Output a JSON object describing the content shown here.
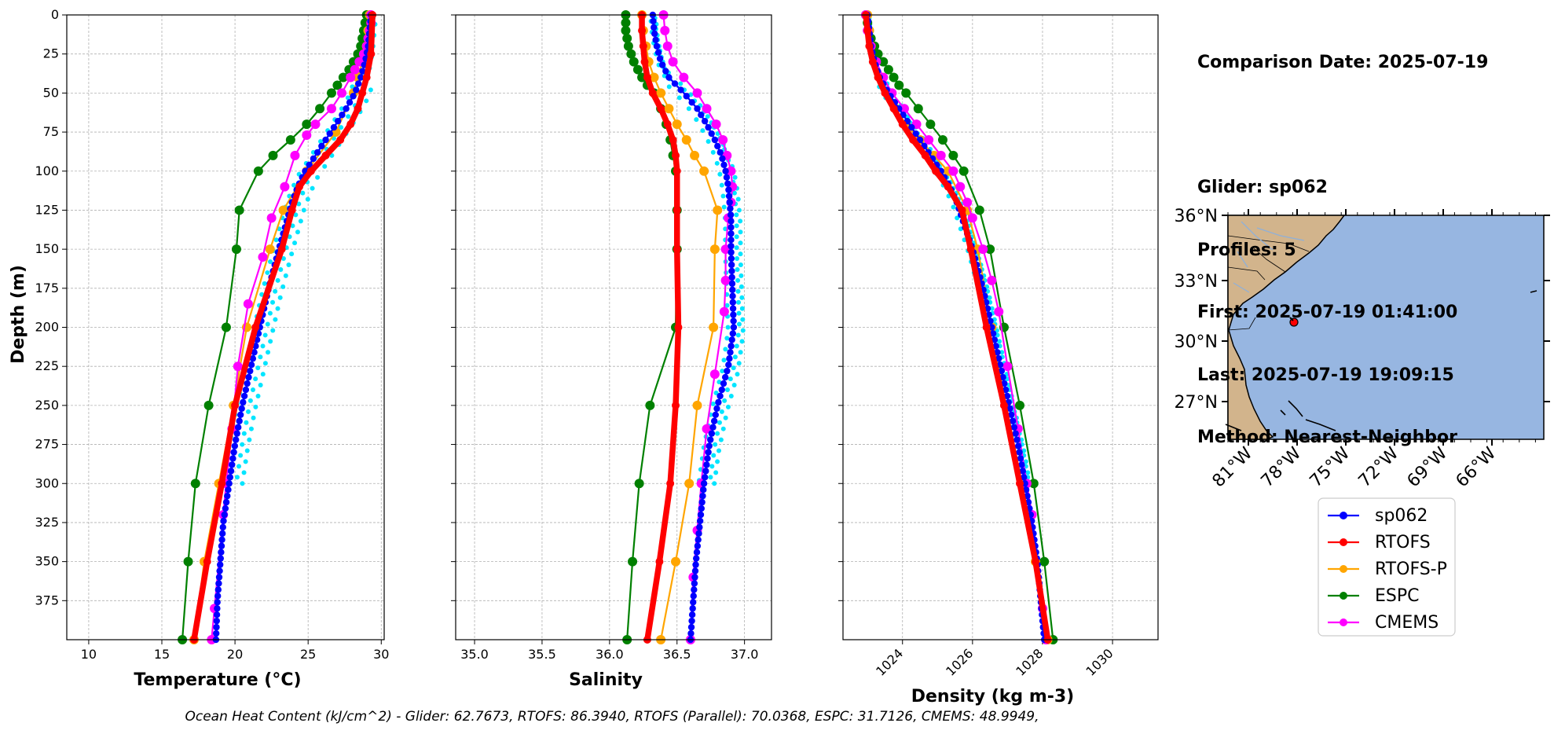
{
  "info_panel": {
    "comparison_date": "Comparison Date: 2025-07-19",
    "glider": "Glider: sp062",
    "profiles": "Profiles: 5",
    "first": "First: 2025-07-19 01:41:00",
    "last": "Last: 2025-07-19 19:09:15",
    "method": "Method: Nearest-Neighbor"
  },
  "footer": "Ocean Heat Content (kJ/cm^2) - Glider: 62.7673,  RTOFS: 86.3940,  RTOFS (Parallel): 70.0368,  ESPC: 31.7126,  CMEMS: 48.9949,",
  "colors": {
    "sp062": "#0000ff",
    "glider_profiles": "#00e5ff",
    "RTOFS": "#ff0000",
    "RTOFS-P": "#ffa500",
    "ESPC": "#008000",
    "CMEMS": "#ff00ff",
    "land": "#d2b48c",
    "ocean": "#97b6e1"
  },
  "chart_data": [
    {
      "type": "line",
      "xlabel": "Temperature (°C)",
      "ylabel": "Depth (m)",
      "xlim": [
        8.5,
        30.2
      ],
      "ylim": [
        400,
        0
      ],
      "xticks": [
        10,
        15,
        20,
        25,
        30
      ],
      "yticks": [
        0,
        25,
        50,
        75,
        100,
        125,
        150,
        175,
        200,
        225,
        250,
        275,
        300,
        325,
        350,
        375
      ],
      "grid": true,
      "series": [
        {
          "name": "sp062",
          "depth": [
            0,
            10,
            20,
            30,
            40,
            50,
            60,
            70,
            80,
            90,
            100,
            110,
            120,
            130,
            140,
            150,
            175,
            200,
            225,
            250,
            275,
            300,
            325,
            350,
            375,
            400
          ],
          "values": [
            29.3,
            29.2,
            29.1,
            28.9,
            28.6,
            28.2,
            27.6,
            26.9,
            26.2,
            25.5,
            24.8,
            24.3,
            23.9,
            23.6,
            23.3,
            23.0,
            22.3,
            21.7,
            21.1,
            20.5,
            20.0,
            19.6,
            19.2,
            19.0,
            18.8,
            18.7
          ]
        },
        {
          "name": "RTOFS",
          "depth": [
            0,
            25,
            40,
            50,
            60,
            70,
            80,
            90,
            100,
            110,
            125,
            150,
            200,
            250,
            300,
            350,
            400
          ],
          "values": [
            29.4,
            29.3,
            29.0,
            28.7,
            28.4,
            27.9,
            27.2,
            26.2,
            25.2,
            24.4,
            23.9,
            23.2,
            21.4,
            20.0,
            19.1,
            18.1,
            17.2
          ]
        },
        {
          "name": "RTOFS-P",
          "depth": [
            0,
            10,
            20,
            30,
            40,
            50,
            75,
            100,
            125,
            150,
            200,
            250,
            300,
            350,
            400
          ],
          "values": [
            29.2,
            29.1,
            29.0,
            28.7,
            28.4,
            28.1,
            26.9,
            24.9,
            23.3,
            22.4,
            20.8,
            19.9,
            18.9,
            17.9,
            17.2
          ]
        },
        {
          "name": "ESPC",
          "depth": [
            0,
            5,
            10,
            15,
            20,
            25,
            30,
            35,
            40,
            45,
            50,
            60,
            70,
            80,
            90,
            100,
            125,
            150,
            200,
            250,
            300,
            350,
            400
          ],
          "values": [
            29.0,
            28.9,
            28.8,
            28.7,
            28.6,
            28.4,
            28.1,
            27.8,
            27.4,
            27.0,
            26.6,
            25.8,
            24.9,
            23.8,
            22.6,
            21.6,
            20.3,
            20.1,
            19.4,
            18.2,
            17.3,
            16.8,
            16.4
          ]
        },
        {
          "name": "CMEMS",
          "depth": [
            0,
            5,
            10,
            15,
            20,
            25,
            30,
            35,
            40,
            50,
            60,
            70,
            77,
            90,
            110,
            130,
            155,
            185,
            225,
            265,
            300,
            320,
            380,
            400
          ],
          "values": [
            29.3,
            29.3,
            29.2,
            29.1,
            29.0,
            28.8,
            28.5,
            28.2,
            27.9,
            27.3,
            26.6,
            25.5,
            24.9,
            24.1,
            23.4,
            22.5,
            21.9,
            20.9,
            20.2,
            19.8,
            19.4,
            19.2,
            18.6,
            18.4
          ]
        }
      ]
    },
    {
      "type": "line",
      "xlabel": "Salinity",
      "ylabel": "",
      "xlim": [
        34.86,
        37.2
      ],
      "ylim": [
        400,
        0
      ],
      "xticks": [
        35.0,
        35.5,
        36.0,
        36.5,
        37.0
      ],
      "grid": true,
      "series": [
        {
          "name": "sp062",
          "depth": [
            0,
            10,
            20,
            30,
            40,
            50,
            60,
            70,
            80,
            90,
            100,
            110,
            120,
            130,
            140,
            150,
            175,
            200,
            225,
            250,
            275,
            300,
            325,
            350,
            375,
            400
          ],
          "values": [
            36.32,
            36.33,
            36.35,
            36.38,
            36.44,
            36.55,
            36.65,
            36.72,
            36.78,
            36.83,
            36.86,
            36.88,
            36.89,
            36.9,
            36.9,
            36.9,
            36.91,
            36.92,
            36.88,
            36.8,
            36.74,
            36.7,
            36.67,
            36.64,
            36.62,
            36.6
          ]
        },
        {
          "name": "RTOFS",
          "depth": [
            0,
            10,
            20,
            30,
            40,
            50,
            60,
            70,
            80,
            90,
            100,
            125,
            150,
            200,
            250,
            300,
            350,
            400
          ],
          "values": [
            36.24,
            36.24,
            36.25,
            36.26,
            36.28,
            36.32,
            36.38,
            36.43,
            36.47,
            36.49,
            36.5,
            36.5,
            36.5,
            36.51,
            36.49,
            36.45,
            36.37,
            36.28
          ]
        },
        {
          "name": "RTOFS-P",
          "depth": [
            0,
            10,
            20,
            30,
            40,
            50,
            60,
            70,
            80,
            90,
            100,
            125,
            150,
            200,
            250,
            300,
            350,
            400
          ],
          "values": [
            36.24,
            36.25,
            36.27,
            36.29,
            36.33,
            36.38,
            36.44,
            36.5,
            36.57,
            36.63,
            36.7,
            36.8,
            36.78,
            36.77,
            36.65,
            36.59,
            36.49,
            36.38
          ]
        },
        {
          "name": "ESPC",
          "depth": [
            0,
            5,
            10,
            15,
            20,
            25,
            30,
            35,
            40,
            45,
            50,
            60,
            70,
            80,
            90,
            100,
            125,
            150,
            200,
            250,
            300,
            350,
            400
          ],
          "values": [
            36.12,
            36.12,
            36.12,
            36.13,
            36.14,
            36.16,
            36.18,
            36.21,
            36.24,
            36.28,
            36.33,
            36.38,
            36.42,
            36.45,
            36.47,
            36.49,
            36.5,
            36.5,
            36.49,
            36.3,
            36.22,
            36.17,
            36.13
          ]
        },
        {
          "name": "CMEMS",
          "depth": [
            0,
            10,
            20,
            30,
            40,
            50,
            60,
            70,
            80,
            90,
            100,
            110,
            120,
            130,
            150,
            170,
            190,
            230,
            265,
            300,
            330,
            360,
            400
          ],
          "values": [
            36.4,
            36.41,
            36.43,
            36.47,
            36.55,
            36.65,
            36.72,
            36.79,
            36.84,
            36.87,
            36.9,
            36.91,
            36.9,
            36.88,
            36.86,
            36.86,
            36.85,
            36.78,
            36.72,
            36.68,
            36.65,
            36.62,
            36.6
          ]
        }
      ]
    },
    {
      "type": "line",
      "xlabel": "Density (kg m-3)",
      "ylabel": "",
      "xlim": [
        1022.3,
        1031.3
      ],
      "ylim": [
        400,
        0
      ],
      "xticks": [
        1024,
        1026,
        1028,
        1030
      ],
      "grid": true,
      "series": [
        {
          "name": "sp062",
          "depth": [
            0,
            10,
            20,
            30,
            40,
            50,
            60,
            70,
            80,
            90,
            100,
            110,
            120,
            130,
            140,
            150,
            175,
            200,
            225,
            250,
            275,
            300,
            325,
            350,
            375,
            400
          ],
          "values": [
            1023.0,
            1023.05,
            1023.1,
            1023.2,
            1023.35,
            1023.6,
            1023.9,
            1024.2,
            1024.5,
            1024.8,
            1025.1,
            1025.35,
            1025.55,
            1025.7,
            1025.85,
            1026.0,
            1026.3,
            1026.55,
            1026.8,
            1027.05,
            1027.3,
            1027.5,
            1027.7,
            1027.85,
            1027.95,
            1028.05
          ]
        },
        {
          "name": "RTOFS",
          "depth": [
            0,
            10,
            20,
            30,
            40,
            50,
            60,
            70,
            80,
            90,
            100,
            110,
            125,
            150,
            200,
            250,
            300,
            350,
            400
          ],
          "values": [
            1022.95,
            1023.0,
            1023.05,
            1023.15,
            1023.3,
            1023.5,
            1023.75,
            1024.0,
            1024.3,
            1024.65,
            1024.95,
            1025.3,
            1025.7,
            1025.95,
            1026.4,
            1026.9,
            1027.35,
            1027.8,
            1028.15
          ]
        },
        {
          "name": "RTOFS-P",
          "depth": [
            0,
            10,
            20,
            30,
            40,
            50,
            60,
            70,
            80,
            90,
            100,
            125,
            150,
            200,
            250,
            300,
            350,
            400
          ],
          "values": [
            1023.0,
            1023.05,
            1023.1,
            1023.2,
            1023.35,
            1023.55,
            1023.8,
            1024.1,
            1024.5,
            1024.9,
            1025.3,
            1025.85,
            1026.15,
            1026.55,
            1026.95,
            1027.4,
            1027.8,
            1028.15
          ]
        },
        {
          "name": "ESPC",
          "depth": [
            0,
            5,
            10,
            15,
            20,
            25,
            30,
            35,
            40,
            45,
            50,
            60,
            70,
            80,
            90,
            100,
            125,
            150,
            200,
            250,
            300,
            350,
            400
          ],
          "values": [
            1022.95,
            1023.0,
            1023.05,
            1023.1,
            1023.2,
            1023.3,
            1023.45,
            1023.6,
            1023.75,
            1023.9,
            1024.1,
            1024.45,
            1024.8,
            1025.15,
            1025.45,
            1025.75,
            1026.2,
            1026.5,
            1026.9,
            1027.35,
            1027.75,
            1028.05,
            1028.3
          ]
        },
        {
          "name": "CMEMS",
          "depth": [
            0,
            10,
            20,
            30,
            40,
            50,
            60,
            70,
            80,
            90,
            100,
            110,
            120,
            130,
            150,
            170,
            190,
            225,
            265,
            300,
            320,
            380,
            400
          ],
          "values": [
            1022.95,
            1023.0,
            1023.1,
            1023.25,
            1023.45,
            1023.7,
            1024.05,
            1024.4,
            1024.75,
            1025.1,
            1025.45,
            1025.65,
            1025.85,
            1026.0,
            1026.3,
            1026.55,
            1026.75,
            1027.0,
            1027.3,
            1027.55,
            1027.7,
            1028.0,
            1028.1
          ]
        }
      ]
    }
  ],
  "map": {
    "lat_labels": [
      "36°N",
      "33°N",
      "30°N",
      "27°N"
    ],
    "lon_labels": [
      "81°W",
      "78°W",
      "75°W",
      "72°W",
      "69°W",
      "66°W"
    ],
    "glider_position": {
      "lon": -77.7,
      "lat": 31.0
    }
  },
  "legend": {
    "entries": [
      "sp062",
      "RTOFS",
      "RTOFS-P",
      "ESPC",
      "CMEMS"
    ]
  }
}
